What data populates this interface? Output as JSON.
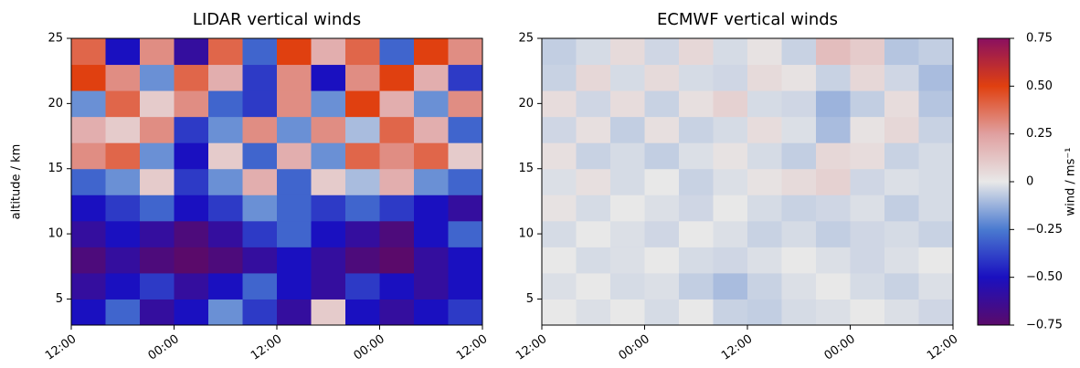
{
  "chart_data": [
    {
      "type": "heatmap",
      "title": "LIDAR vertical winds",
      "ylabel": "altitude / km",
      "xlim": [
        0,
        48
      ],
      "xticks": [
        {
          "value": 0,
          "label": "12:00"
        },
        {
          "value": 12,
          "label": "00:00"
        },
        {
          "value": 24,
          "label": "12:00"
        },
        {
          "value": 36,
          "label": "00:00"
        },
        {
          "value": 48,
          "label": "12:00"
        }
      ],
      "ylim": [
        3,
        25
      ],
      "yticks": [
        5,
        10,
        15,
        20,
        25
      ],
      "x": [
        2,
        6,
        10,
        14,
        18,
        22,
        26,
        30,
        34,
        38,
        42,
        46
      ],
      "y": [
        4,
        6,
        8,
        10,
        12,
        14,
        16,
        18,
        20,
        22,
        24
      ],
      "z": [
        [
          -0.5,
          -0.3,
          -0.6,
          -0.5,
          -0.2,
          -0.4,
          -0.6,
          0.1,
          -0.5,
          -0.6,
          -0.5,
          -0.4
        ],
        [
          -0.6,
          -0.5,
          -0.4,
          -0.6,
          -0.5,
          -0.3,
          -0.5,
          -0.6,
          -0.4,
          -0.5,
          -0.6,
          -0.5
        ],
        [
          -0.7,
          -0.6,
          -0.7,
          -0.75,
          -0.7,
          -0.6,
          -0.5,
          -0.6,
          -0.7,
          -0.75,
          -0.6,
          -0.5
        ],
        [
          -0.6,
          -0.5,
          -0.6,
          -0.7,
          -0.6,
          -0.4,
          -0.3,
          -0.5,
          -0.6,
          -0.7,
          -0.5,
          -0.3
        ],
        [
          -0.5,
          -0.4,
          -0.3,
          -0.5,
          -0.4,
          -0.2,
          -0.3,
          -0.4,
          -0.3,
          -0.4,
          -0.5,
          -0.6
        ],
        [
          -0.3,
          -0.2,
          0.1,
          -0.4,
          -0.2,
          0.2,
          -0.3,
          0.1,
          -0.1,
          0.2,
          -0.2,
          -0.3
        ],
        [
          0.3,
          0.4,
          -0.2,
          -0.5,
          0.1,
          -0.3,
          0.2,
          -0.2,
          0.4,
          0.3,
          0.4,
          0.1
        ],
        [
          0.2,
          0.1,
          0.3,
          -0.4,
          -0.2,
          0.3,
          -0.2,
          0.3,
          -0.1,
          0.4,
          0.2,
          -0.3
        ],
        [
          -0.2,
          0.4,
          0.1,
          0.3,
          -0.3,
          -0.4,
          0.3,
          -0.2,
          0.5,
          0.2,
          -0.2,
          0.3
        ],
        [
          0.5,
          0.3,
          -0.2,
          0.4,
          0.2,
          -0.4,
          0.3,
          -0.5,
          0.3,
          0.5,
          0.2,
          -0.4
        ],
        [
          0.4,
          -0.5,
          0.3,
          -0.6,
          0.4,
          -0.3,
          0.5,
          0.2,
          0.4,
          -0.3,
          0.5,
          0.3
        ]
      ]
    },
    {
      "type": "heatmap",
      "title": "ECMWF vertical winds",
      "xlim": [
        0,
        48
      ],
      "xticks": [
        {
          "value": 0,
          "label": "12:00"
        },
        {
          "value": 12,
          "label": "00:00"
        },
        {
          "value": 24,
          "label": "12:00"
        },
        {
          "value": 36,
          "label": "00:00"
        },
        {
          "value": 48,
          "label": "12:00"
        }
      ],
      "ylim": [
        3,
        25
      ],
      "yticks": [
        5,
        10,
        15,
        20,
        25
      ],
      "x": [
        2,
        6,
        10,
        14,
        18,
        22,
        26,
        30,
        34,
        38,
        42,
        46
      ],
      "y": [
        4,
        6,
        8,
        10,
        12,
        14,
        16,
        18,
        20,
        22,
        24
      ],
      "z": [
        [
          0,
          -0.02,
          0,
          -0.03,
          0,
          -0.05,
          -0.06,
          -0.03,
          -0.02,
          0,
          -0.02,
          -0.04
        ],
        [
          -0.02,
          0,
          -0.03,
          -0.02,
          -0.06,
          -0.1,
          -0.05,
          -0.02,
          0,
          -0.03,
          -0.05,
          -0.02
        ],
        [
          0,
          -0.03,
          -0.02,
          0,
          -0.03,
          -0.04,
          -0.02,
          0,
          -0.02,
          -0.04,
          -0.02,
          0
        ],
        [
          -0.03,
          0,
          -0.02,
          -0.04,
          0,
          -0.02,
          -0.05,
          -0.03,
          -0.06,
          -0.04,
          -0.03,
          -0.05
        ],
        [
          0.02,
          -0.03,
          0,
          -0.02,
          -0.04,
          0,
          -0.03,
          -0.05,
          -0.04,
          -0.02,
          -0.06,
          -0.03
        ],
        [
          -0.02,
          0.03,
          -0.03,
          0,
          -0.05,
          -0.02,
          0.02,
          0.05,
          0.08,
          -0.04,
          -0.02,
          -0.03
        ],
        [
          0.03,
          -0.05,
          -0.03,
          -0.06,
          -0.02,
          0.02,
          -0.03,
          -0.06,
          0.06,
          0.04,
          -0.05,
          -0.03
        ],
        [
          -0.04,
          0.03,
          -0.06,
          0.03,
          -0.05,
          -0.03,
          0.04,
          -0.02,
          -0.1,
          0.02,
          0.06,
          -0.05
        ],
        [
          0.04,
          -0.04,
          0.04,
          -0.05,
          0.03,
          0.08,
          -0.03,
          -0.04,
          -0.12,
          -0.06,
          0.04,
          -0.08
        ],
        [
          -0.05,
          0.06,
          -0.03,
          0.05,
          -0.03,
          -0.04,
          0.05,
          0.02,
          -0.05,
          0.06,
          -0.04,
          -0.1
        ],
        [
          -0.06,
          -0.03,
          0.05,
          -0.04,
          0.06,
          -0.03,
          0.02,
          -0.05,
          0.15,
          0.1,
          -0.08,
          -0.06
        ]
      ],
      "colorbar": {
        "label": "wind / ms⁻¹",
        "lim": [
          -0.75,
          0.75
        ],
        "ticks": [
          {
            "value": -0.75,
            "label": "−0.75"
          },
          {
            "value": -0.5,
            "label": "−0.50"
          },
          {
            "value": -0.25,
            "label": "−0.25"
          },
          0,
          {
            "value": 0.25,
            "label": "0.25"
          },
          {
            "value": 0.5,
            "label": "0.50"
          },
          0.75
        ],
        "colormap": [
          "#5a0a6a",
          "#1a10c0",
          "#4a7ad0",
          "#e8e8e8",
          "#e0a0a0",
          "#e04010",
          "#8a1060"
        ]
      }
    }
  ]
}
